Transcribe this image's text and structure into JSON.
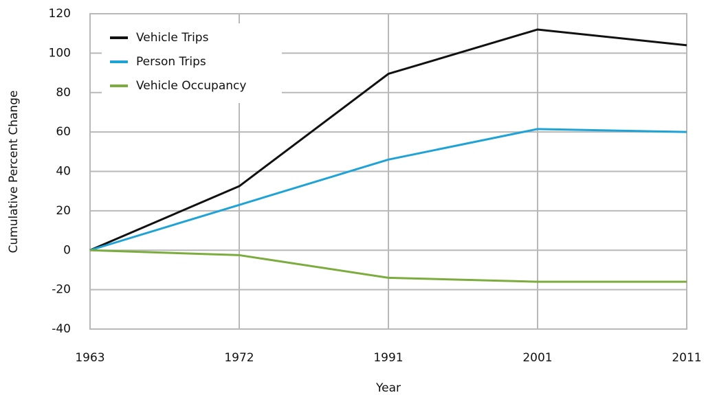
{
  "chart_data": {
    "type": "line",
    "x_label": "Year",
    "y_label": "Cumulative Percent Change",
    "categories": [
      "1963",
      "1972",
      "1991",
      "2001",
      "2011"
    ],
    "series": [
      {
        "name": "Vehicle Trips",
        "color": "#111111",
        "values": [
          0,
          32.5,
          89.5,
          112,
          104
        ]
      },
      {
        "name": "Person Trips",
        "color": "#1fa3d6",
        "values": [
          0,
          23,
          46,
          61.5,
          60
        ]
      },
      {
        "name": "Vehicle Occupancy",
        "color": "#7cac3e",
        "values": [
          0,
          -2.5,
          -14,
          -16,
          -16
        ]
      }
    ],
    "ylim": [
      -40,
      120
    ],
    "yticks": [
      -40,
      -20,
      0,
      20,
      40,
      60,
      80,
      100,
      120
    ],
    "grid": true,
    "legend": "upper left"
  }
}
